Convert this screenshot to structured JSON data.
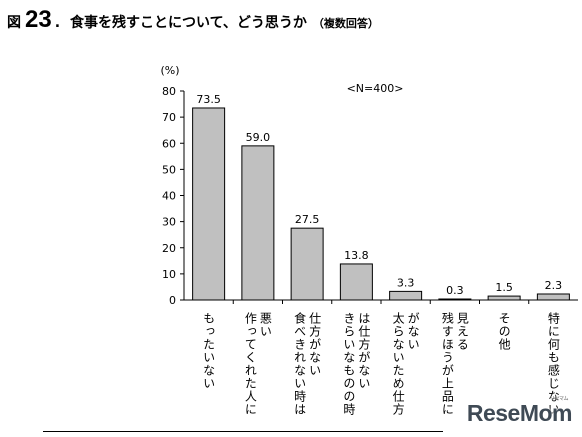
{
  "figure": {
    "label": "図",
    "number": "23",
    "dot": ".",
    "question": "食事を残すことについて、どう思うか",
    "note": "（複数回答）"
  },
  "chart_data": {
    "type": "bar",
    "unit_label": "(%)",
    "sample_note": "<N=400>",
    "categories": [
      [
        "もったいない"
      ],
      [
        "悪い",
        "作ってくれた人に"
      ],
      [
        "仕方がない",
        "食べきれない時は"
      ],
      [
        "は仕方がない",
        "きらいなものの時"
      ],
      [
        "がない",
        "太らないため仕方"
      ],
      [
        "見える",
        "残すほうが上品に"
      ],
      [
        "その他"
      ],
      [
        "特に何も感じない"
      ]
    ],
    "values": [
      73.5,
      59.0,
      27.5,
      13.8,
      3.3,
      0.3,
      1.5,
      2.3
    ],
    "value_labels": [
      "73.5",
      "59.0",
      "27.5",
      "13.8",
      "3.3",
      "0.3",
      "1.5",
      "2.3"
    ],
    "y_ticks": [
      "0",
      "10",
      "20",
      "30",
      "40",
      "50",
      "60",
      "70",
      "80"
    ],
    "ylim": [
      0,
      80
    ],
    "grid": false,
    "bar_color": "#c0c0c0",
    "bar_stroke": "#000000"
  },
  "watermark": {
    "text": "ReseMom",
    "sub": "リセマム"
  }
}
